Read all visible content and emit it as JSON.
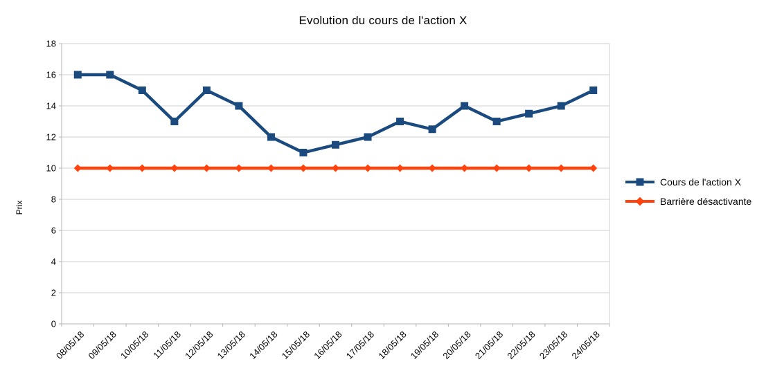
{
  "chart_data": {
    "type": "line",
    "title": "Evolution du cours de l'action X",
    "xlabel": "",
    "ylabel": "Prix",
    "categories": [
      "08/05/18",
      "09/05/18",
      "10/05/18",
      "11/05/18",
      "12/05/18",
      "13/05/18",
      "14/05/18",
      "15/05/18",
      "16/05/18",
      "17/05/18",
      "18/05/18",
      "19/05/18",
      "20/05/18",
      "21/05/18",
      "22/05/18",
      "23/05/18",
      "24/05/18"
    ],
    "series": [
      {
        "name": "Cours de l'action X",
        "marker": "square",
        "color": "#1B4B7E",
        "values": [
          16,
          16,
          15,
          13,
          15,
          14,
          12,
          11,
          11.5,
          12,
          13,
          12.5,
          14,
          13,
          13.5,
          14,
          15
        ]
      },
      {
        "name": "Barrière désactivante",
        "marker": "diamond",
        "color": "#FF420E",
        "values": [
          10,
          10,
          10,
          10,
          10,
          10,
          10,
          10,
          10,
          10,
          10,
          10,
          10,
          10,
          10,
          10,
          10
        ]
      }
    ],
    "ylim": [
      0,
      18
    ],
    "ytick_step": 2,
    "grid": "horizontal",
    "legend_position": "right",
    "x_label_rotation": -45,
    "grid_color": "#cfcfcf",
    "axis_color": "#b3b3b3",
    "text_color": "#000000"
  }
}
